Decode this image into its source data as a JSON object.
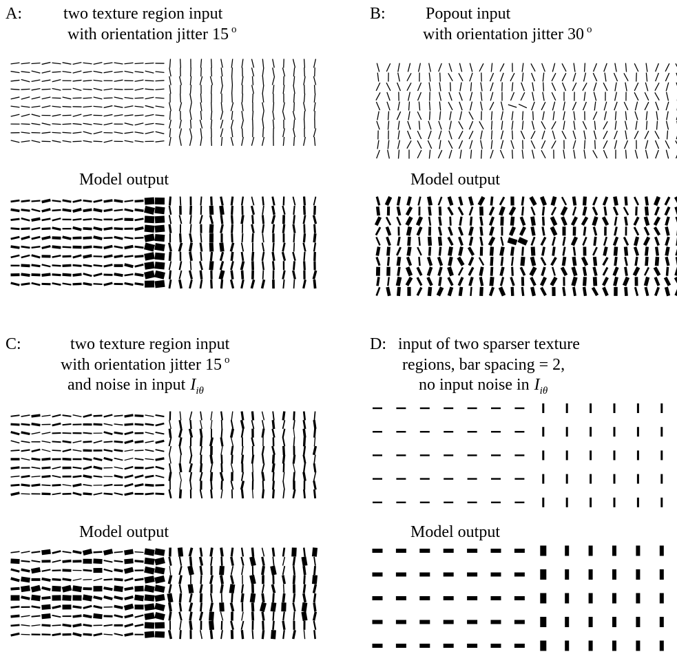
{
  "panels": {
    "A": {
      "letter": "A:",
      "line1": "two texture region input",
      "line2": "with orientation jitter 15",
      "line2_sup": "o",
      "output_label": "Model output",
      "jitter_deg": 15
    },
    "B": {
      "letter": "B:",
      "line1": "Popout input",
      "line2": "with orientation jitter 30",
      "line2_sup": "o",
      "output_label": "Model output",
      "jitter_deg": 30
    },
    "C": {
      "letter": "C:",
      "line1": "two texture region input",
      "line2": "with orientation jitter 15",
      "line2_sup": "o",
      "line3": "and noise in input",
      "line3_var": "I",
      "line3_sub": "iθ",
      "output_label": "Model output",
      "jitter_deg": 15
    },
    "D": {
      "letter": "D:",
      "line1": "input of two sparser texture",
      "line2": "regions, bar spacing = 2,",
      "line3": "no input noise in",
      "line3_var": "I",
      "line3_sub": "iθ",
      "output_label": "Model output"
    }
  }
}
